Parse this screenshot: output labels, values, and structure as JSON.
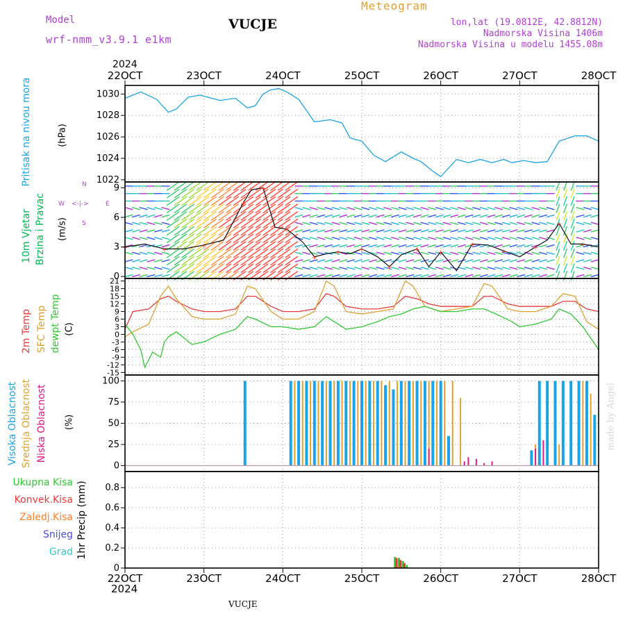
{
  "header": {
    "model_label": "Model",
    "model_value": "wrf-nmm_v3.9.1 e1km",
    "station_title": "VUCJE",
    "meteogram_title": "Meteogram",
    "coords": "lon,lat (19.0812E, 42.8812N)",
    "elevation": "Nadmorska Visina 1406m",
    "model_elevation": "Nadmorska Visina u modelu 1455.08m",
    "credit": "made by Angel",
    "footer_station": "VUCJE",
    "year": "2024"
  },
  "colors": {
    "pressure": "#1aa3e6",
    "wind_label": "#00b84f",
    "temp2m": "#e83a3a",
    "sfc_temp": "#e0a030",
    "dewpt": "#2fc82f",
    "high_cloud": "#1aa3e6",
    "mid_cloud": "#e0a030",
    "low_cloud": "#e0198a",
    "total_precip": "#2fc82f",
    "conv_precip": "#e83a3a",
    "frozen_precip": "#ff7f27",
    "snow": "#4b4be6",
    "hail": "#2ecbcb",
    "header_purple": "#b13fd6",
    "grid": "#999999"
  },
  "time_axis": {
    "top_ticks": [
      "22OCT",
      "23OCT",
      "24OCT",
      "25OCT",
      "26OCT",
      "27OCT",
      "28OCT"
    ],
    "bottom_ticks": [
      "22OCT",
      "23OCT",
      "24OCT",
      "25OCT",
      "26OCT",
      "27OCT",
      "28OCT"
    ]
  },
  "compass": {
    "n": "N",
    "s": "S",
    "w": "W",
    "e": "E"
  },
  "chart_data": [
    {
      "type": "line",
      "name": "pressure",
      "ylabel_line1": "Pritisak na nivou mora",
      "ylabel_units": "(hPa)",
      "y_ticks": [
        1022,
        1024,
        1026,
        1028,
        1030
      ],
      "ylim": [
        1021.8,
        1030.8
      ],
      "grid": true,
      "x_days": [
        0,
        0.2,
        0.4,
        0.55,
        0.65,
        0.8,
        0.95,
        1.05,
        1.2,
        1.4,
        1.55,
        1.65,
        1.75,
        1.85,
        1.95,
        2.05,
        2.2,
        2.4,
        2.6,
        2.75,
        2.85,
        3.0,
        3.15,
        3.3,
        3.5,
        3.65,
        3.75,
        3.9,
        4.0,
        4.2,
        4.35,
        4.5,
        4.65,
        4.8,
        4.9,
        5.05,
        5.2,
        5.35,
        5.5,
        5.7,
        5.85,
        6.0
      ],
      "values": [
        1029.6,
        1030.2,
        1029.5,
        1028.3,
        1028.6,
        1029.7,
        1029.9,
        1029.7,
        1029.4,
        1029.6,
        1028.7,
        1028.9,
        1030.0,
        1030.4,
        1030.5,
        1030.2,
        1029.5,
        1027.4,
        1027.6,
        1027.3,
        1025.9,
        1025.6,
        1024.3,
        1023.7,
        1024.6,
        1024.0,
        1023.7,
        1022.8,
        1022.3,
        1023.9,
        1023.6,
        1023.9,
        1023.6,
        1023.9,
        1023.6,
        1023.8,
        1023.6,
        1023.7,
        1025.6,
        1026.1,
        1026.1,
        1025.6
      ]
    },
    {
      "type": "line",
      "name": "wind",
      "ylabel_line1": "10m Vjetar",
      "ylabel_line2": "Brzina i Pravac",
      "ylabel_units": "(m/s)",
      "y_ticks": [
        0,
        3,
        6,
        9
      ],
      "ylim": [
        -0.2,
        9.6
      ],
      "grid": true,
      "x_days": [
        0,
        0.25,
        0.5,
        0.75,
        1.0,
        1.25,
        1.5,
        1.6,
        1.75,
        1.9,
        2.05,
        2.25,
        2.4,
        2.55,
        2.7,
        2.85,
        3.0,
        3.2,
        3.35,
        3.5,
        3.7,
        3.85,
        4.0,
        4.2,
        4.4,
        4.6,
        4.8,
        5.0,
        5.2,
        5.35,
        5.5,
        5.65,
        5.8,
        6.0
      ],
      "values": [
        3.0,
        3.3,
        2.8,
        2.8,
        3.2,
        3.7,
        7.5,
        8.8,
        9.0,
        5.0,
        4.8,
        3.5,
        2.0,
        2.3,
        2.5,
        2.3,
        2.8,
        2.0,
        1.0,
        2.2,
        2.8,
        1.0,
        2.5,
        0.6,
        3.3,
        3.2,
        2.6,
        2.0,
        3.0,
        3.7,
        5.4,
        3.3,
        3.3,
        3.0
      ]
    },
    {
      "type": "line",
      "name": "temperature",
      "ylabel_line1": "2m Temp",
      "ylabel_line2": "SFC Temp",
      "ylabel_line3": "dewpt Temp",
      "ylabel_units": "(C)",
      "y_ticks": [
        -15,
        -12,
        -9,
        -6,
        -3,
        0,
        3,
        6,
        9,
        12,
        15,
        18,
        21
      ],
      "ylim": [
        -16,
        22
      ],
      "grid": true,
      "series": [
        {
          "name": "2m Temp",
          "x_days": [
            0,
            0.1,
            0.3,
            0.45,
            0.55,
            0.65,
            0.85,
            1.0,
            1.2,
            1.4,
            1.55,
            1.65,
            1.85,
            2.0,
            2.2,
            2.4,
            2.55,
            2.65,
            2.8,
            3.0,
            3.2,
            3.4,
            3.55,
            3.7,
            3.85,
            4.0,
            4.2,
            4.4,
            4.55,
            4.65,
            4.85,
            5.0,
            5.2,
            5.4,
            5.55,
            5.7,
            5.85,
            6.0
          ],
          "values": [
            2,
            9,
            10,
            14,
            15,
            13,
            10,
            9,
            9,
            10,
            15,
            15,
            11,
            9,
            9,
            10,
            16,
            15,
            11,
            10,
            10,
            11,
            15,
            14,
            12,
            11,
            11,
            11,
            15,
            15,
            12,
            11,
            11,
            11,
            13,
            13,
            10,
            9
          ]
        },
        {
          "name": "SFC Temp",
          "x_days": [
            0,
            0.1,
            0.3,
            0.45,
            0.55,
            0.65,
            0.85,
            1.0,
            1.2,
            1.4,
            1.55,
            1.65,
            1.85,
            2.0,
            2.2,
            2.4,
            2.55,
            2.65,
            2.8,
            3.0,
            3.2,
            3.4,
            3.55,
            3.65,
            3.8,
            4.0,
            4.2,
            4.4,
            4.55,
            4.65,
            4.85,
            5.0,
            5.2,
            5.4,
            5.55,
            5.7,
            5.85,
            6.0
          ],
          "values": [
            -1,
            1,
            4,
            15,
            19,
            14,
            7,
            6,
            6,
            8,
            19,
            18,
            9,
            6,
            6,
            9,
            21,
            19,
            9,
            8,
            9,
            10,
            21,
            19,
            11,
            9,
            10,
            11,
            20,
            19,
            10,
            9,
            9,
            11,
            16,
            15,
            5,
            2
          ]
        },
        {
          "name": "dewpt Temp",
          "x_days": [
            0,
            0.1,
            0.2,
            0.25,
            0.35,
            0.45,
            0.5,
            0.55,
            0.65,
            0.85,
            1.0,
            1.2,
            1.4,
            1.55,
            1.65,
            1.85,
            2.0,
            2.2,
            2.4,
            2.55,
            2.65,
            2.8,
            3.0,
            3.2,
            3.35,
            3.5,
            3.65,
            3.8,
            4.0,
            4.2,
            4.4,
            4.55,
            4.7,
            4.9,
            5.0,
            5.2,
            5.4,
            5.5,
            5.65,
            5.8,
            6.0
          ],
          "values": [
            4,
            0,
            -6,
            -13,
            -7,
            -9,
            -3,
            -1,
            1,
            -4,
            -3,
            0,
            2,
            7,
            6,
            3,
            3,
            2,
            3,
            7,
            5,
            2,
            3,
            5,
            7,
            8,
            10,
            11,
            9,
            9,
            10,
            10,
            8,
            5,
            3,
            4,
            6,
            10,
            8,
            3,
            -6
          ]
        }
      ]
    },
    {
      "type": "bar",
      "name": "cloudiness",
      "ylabel_line1": "Visoka Oblacnost",
      "ylabel_line2": "Srednja Oblacnost",
      "ylabel_line3": "Niska Oblacnost",
      "ylabel_units": "(%)",
      "y_ticks": [
        0,
        25,
        50,
        75,
        100
      ],
      "ylim": [
        -7,
        107
      ],
      "grid": true,
      "series": [
        {
          "name": "Visoka Oblacnost",
          "x_days": [
            1.52,
            2.1,
            2.2,
            2.3,
            2.4,
            2.5,
            2.6,
            2.7,
            2.8,
            2.9,
            3.0,
            3.1,
            3.2,
            3.3,
            3.4,
            3.5,
            3.6,
            3.7,
            3.8,
            3.9,
            4.0,
            4.1,
            5.15,
            5.25,
            5.35,
            5.45,
            5.55,
            5.65,
            5.75,
            5.85,
            5.95
          ],
          "values": [
            100,
            100,
            100,
            100,
            100,
            100,
            100,
            100,
            100,
            100,
            100,
            100,
            100,
            95,
            90,
            100,
            100,
            100,
            100,
            100,
            100,
            35,
            18,
            100,
            100,
            100,
            100,
            100,
            100,
            100,
            60
          ]
        },
        {
          "name": "Srednja Oblacnost",
          "x_days": [
            2.15,
            2.25,
            2.35,
            2.45,
            2.55,
            2.65,
            2.75,
            2.85,
            2.95,
            3.05,
            3.15,
            3.25,
            3.35,
            3.45,
            3.55,
            3.65,
            3.75,
            3.85,
            3.95,
            4.05,
            4.15,
            4.25,
            5.2,
            5.5,
            5.8,
            5.9
          ],
          "values": [
            100,
            100,
            100,
            100,
            100,
            100,
            100,
            100,
            100,
            100,
            100,
            100,
            100,
            100,
            100,
            100,
            100,
            100,
            100,
            100,
            100,
            80,
            25,
            25,
            100,
            85
          ]
        },
        {
          "name": "Niska Oblacnost",
          "x_days": [
            3.85,
            4.3,
            4.35,
            4.45,
            4.55,
            4.65,
            5.2,
            5.3
          ],
          "values": [
            20,
            5,
            10,
            8,
            3,
            5,
            20,
            30
          ]
        }
      ]
    },
    {
      "type": "bar",
      "name": "precipitation",
      "ylabel_line1": "Ukupna Kisa",
      "ylabel_line2": "Konvek.Kisa",
      "ylabel_line3": "Zaledj.Kisa",
      "ylabel_line4": "Snijeg",
      "ylabel_line5": "Grad",
      "ylabel_units": "1hr Precip (mm)",
      "y_ticks": [
        0,
        0.2,
        0.4,
        0.6,
        0.8
      ],
      "ylim": [
        0,
        0.96
      ],
      "grid": true,
      "series": [
        {
          "name": "Ukupna Kisa",
          "x_days": [
            3.42,
            3.47,
            3.52,
            3.57
          ],
          "values": [
            0.11,
            0.1,
            0.07,
            0.03
          ]
        },
        {
          "name": "Konvek.Kisa",
          "x_days": [
            3.44,
            3.49,
            3.54
          ],
          "values": [
            0.1,
            0.08,
            0.05
          ]
        },
        {
          "name": "Zaledj.Kisa",
          "x_days": [
            3.46
          ],
          "values": [
            0.02
          ]
        }
      ]
    }
  ]
}
